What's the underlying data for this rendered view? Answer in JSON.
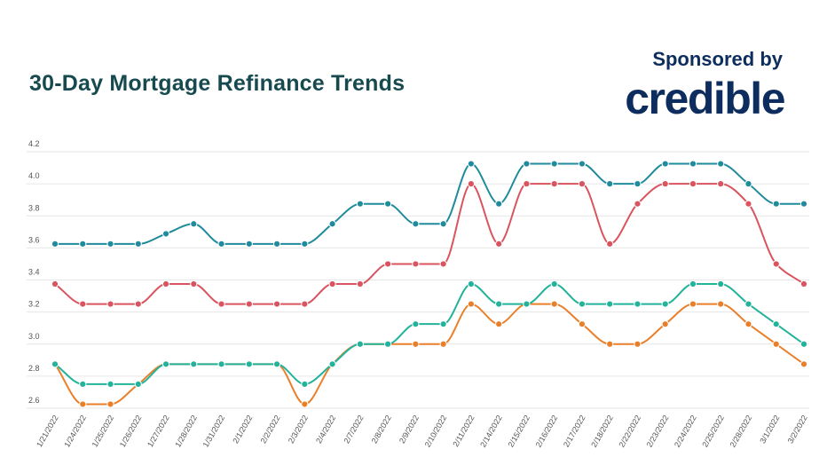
{
  "header": {
    "title": "30-Day Mortgage Refinance Trends",
    "sponsored_label": "Sponsored by",
    "logo_text": "credible"
  },
  "chart_data": {
    "type": "line",
    "title": "30-Day Mortgage Refinance Trends",
    "xlabel": "",
    "ylabel": "",
    "ylim": [
      2.6,
      4.2
    ],
    "yticks": [
      "2.6",
      "2.8",
      "3.0",
      "3.2",
      "3.4",
      "3.6",
      "3.8",
      "4.0",
      "4.2"
    ],
    "grid": true,
    "legend": "none",
    "x": [
      "1/21/2022",
      "1/24/2022",
      "1/25/2022",
      "1/26/2022",
      "1/27/2022",
      "1/28/2022",
      "1/31/2022",
      "2/1/2022",
      "2/2/2022",
      "2/3/2022",
      "2/4/2022",
      "2/7/2022",
      "2/8/2022",
      "2/9/2022",
      "2/10/2022",
      "2/11/2022",
      "2/14/2022",
      "2/15/2022",
      "2/16/2022",
      "2/17/2022",
      "2/18/2022",
      "2/22/2022",
      "2/23/2022",
      "2/24/2022",
      "2/25/2022",
      "2/28/2022",
      "3/1/2022",
      "3/2/2022"
    ],
    "series": [
      {
        "color": "#1f8b9c",
        "values": [
          3.625,
          3.625,
          3.625,
          3.625,
          3.688,
          3.75,
          3.625,
          3.625,
          3.625,
          3.625,
          3.75,
          3.875,
          3.875,
          3.75,
          3.75,
          4.125,
          3.875,
          4.125,
          4.125,
          4.125,
          4.0,
          4.0,
          4.125,
          4.125,
          4.125,
          4.0,
          3.875,
          3.875
        ]
      },
      {
        "color": "#d9545f",
        "values": [
          3.375,
          3.25,
          3.25,
          3.25,
          3.375,
          3.375,
          3.25,
          3.25,
          3.25,
          3.25,
          3.375,
          3.375,
          3.5,
          3.5,
          3.5,
          4.0,
          3.625,
          4.0,
          4.0,
          4.0,
          3.625,
          3.875,
          4.0,
          4.0,
          4.0,
          3.875,
          3.5,
          3.375
        ]
      },
      {
        "color": "#22b39a",
        "values": [
          2.875,
          2.75,
          2.75,
          2.75,
          2.875,
          2.875,
          2.875,
          2.875,
          2.875,
          2.75,
          2.875,
          3.0,
          3.0,
          3.125,
          3.125,
          3.375,
          3.25,
          3.25,
          3.375,
          3.25,
          3.25,
          3.25,
          3.25,
          3.375,
          3.375,
          3.25,
          3.125,
          3.0
        ]
      },
      {
        "color": "#ea7f2a",
        "values": [
          2.875,
          2.625,
          2.625,
          2.75,
          2.875,
          2.875,
          2.875,
          2.875,
          2.875,
          2.625,
          2.875,
          3.0,
          3.0,
          3.0,
          3.0,
          3.25,
          3.125,
          3.25,
          3.25,
          3.125,
          3.0,
          3.0,
          3.125,
          3.25,
          3.25,
          3.125,
          3.0,
          2.875
        ]
      }
    ]
  }
}
